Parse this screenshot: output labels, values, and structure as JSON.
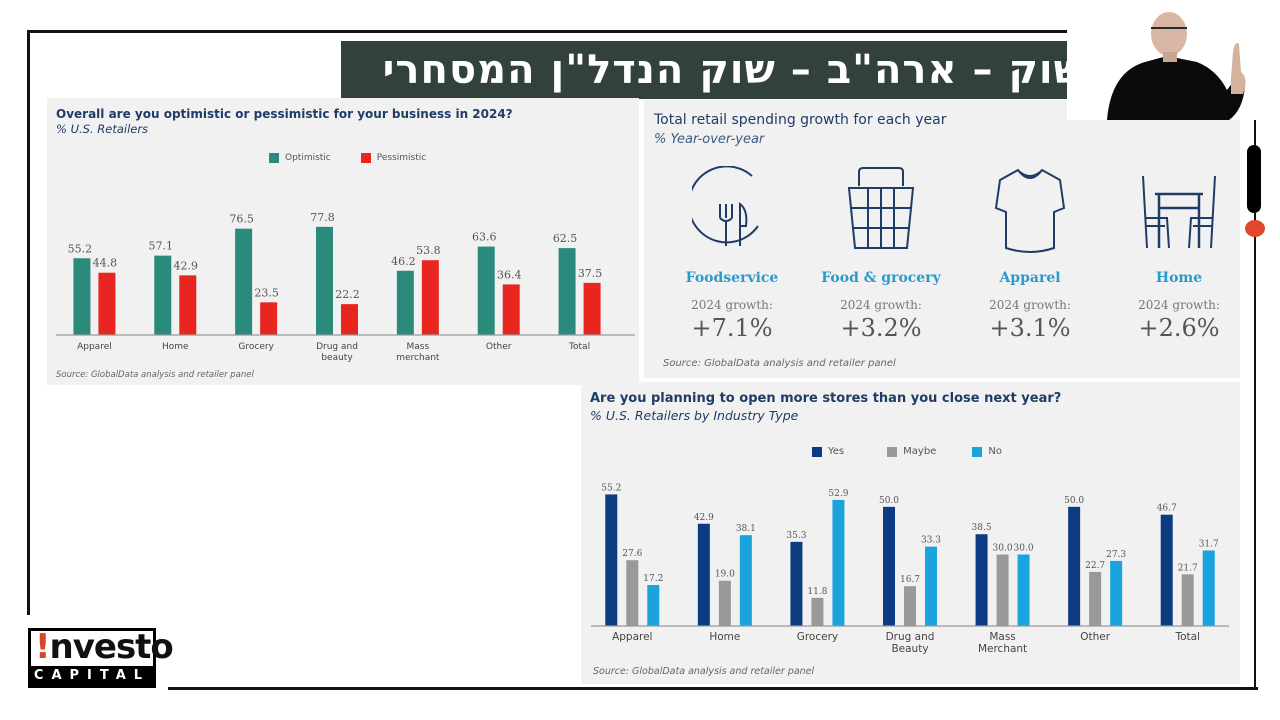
{
  "slide": {
    "title": "שוק – ארה\"ב – שוק הנדל\"ן המסחרי",
    "logo": {
      "word": "nvesto",
      "bang": "!",
      "sub": "CAPITAL"
    },
    "colors": {
      "banner": "#33413b",
      "accent_red": "#e2472d"
    }
  },
  "panels": {
    "outlook": {
      "title": "Overall are you optimistic or pessimistic for your business in 2024?",
      "subtitle": "% U.S. Retailers",
      "source": "Source: GlobalData analysis and retailer panel",
      "legend": [
        {
          "label": "Optimistic",
          "color": "#2a8a7c"
        },
        {
          "label": "Pessimistic",
          "color": "#e8261f"
        }
      ]
    },
    "growth": {
      "title": "Total retail spending growth for each year",
      "subtitle": "% Year-over-year",
      "source": "Source: GlobalData analysis and retailer panel",
      "items": [
        {
          "icon": "fork-knife-icon",
          "name": "Foodservice",
          "label": "2024 growth:",
          "value": "+7.1%"
        },
        {
          "icon": "basket-icon",
          "name": "Food & grocery",
          "label": "2024 growth:",
          "value": "+3.2%"
        },
        {
          "icon": "tshirt-icon",
          "name": "Apparel",
          "label": "2024 growth:",
          "value": "+3.1%"
        },
        {
          "icon": "table-chairs-icon",
          "name": "Home",
          "label": "2024 growth:",
          "value": "+2.6%"
        }
      ]
    },
    "stores": {
      "title": "Are you planning to open more stores than you close next year?",
      "subtitle": "% U.S. Retailers by Industry Type",
      "source": "Source: GlobalData analysis and retailer panel",
      "legend": [
        {
          "label": "Yes",
          "color": "#0d3b82"
        },
        {
          "label": "Maybe",
          "color": "#999999"
        },
        {
          "label": "No",
          "color": "#1aa3dd"
        }
      ]
    }
  },
  "chart_data": [
    {
      "type": "bar",
      "title": "Overall are you optimistic or pessimistic for your business in 2024?",
      "subtitle": "% U.S. Retailers",
      "categories": [
        "Apparel",
        "Home",
        "Grocery",
        "Drug and beauty",
        "Mass merchant",
        "Other",
        "Total"
      ],
      "category_lines": [
        [
          "Apparel"
        ],
        [
          "Home"
        ],
        [
          "Grocery"
        ],
        [
          "Drug and",
          "beauty"
        ],
        [
          "Mass",
          "merchant"
        ],
        [
          "Other"
        ],
        [
          "Total"
        ]
      ],
      "series": [
        {
          "name": "Optimistic",
          "color": "#2a8a7c",
          "values": [
            55.2,
            57.1,
            76.5,
            77.8,
            46.2,
            63.6,
            62.5
          ]
        },
        {
          "name": "Pessimistic",
          "color": "#e8261f",
          "values": [
            44.8,
            42.9,
            23.5,
            22.2,
            53.8,
            36.4,
            37.5
          ]
        }
      ],
      "xlabel": "",
      "ylabel": "",
      "ylim": [
        0,
        100
      ],
      "grid": false,
      "legend": "top-right"
    },
    {
      "type": "bar",
      "title": "Are you planning to open more stores than you close next year?",
      "subtitle": "% U.S. Retailers by Industry Type",
      "categories": [
        "Apparel",
        "Home",
        "Grocery",
        "Drug and Beauty",
        "Mass Merchant",
        "Other",
        "Total"
      ],
      "category_lines": [
        [
          "Apparel"
        ],
        [
          "Home"
        ],
        [
          "Grocery"
        ],
        [
          "Drug and",
          "Beauty"
        ],
        [
          "Mass",
          "Merchant"
        ],
        [
          "Other"
        ],
        [
          "Total"
        ]
      ],
      "series": [
        {
          "name": "Yes",
          "color": "#0d3b82",
          "values": [
            55.2,
            42.9,
            35.3,
            50.0,
            38.5,
            50.0,
            46.7
          ]
        },
        {
          "name": "Maybe",
          "color": "#999999",
          "values": [
            27.6,
            19.0,
            11.8,
            16.7,
            30.0,
            22.7,
            21.7
          ]
        },
        {
          "name": "No",
          "color": "#1aa3dd",
          "values": [
            17.2,
            38.1,
            52.9,
            33.3,
            30.0,
            27.3,
            31.7
          ]
        }
      ],
      "xlabel": "",
      "ylabel": "",
      "ylim": [
        0,
        60
      ],
      "grid": false,
      "legend": "top-center"
    }
  ]
}
